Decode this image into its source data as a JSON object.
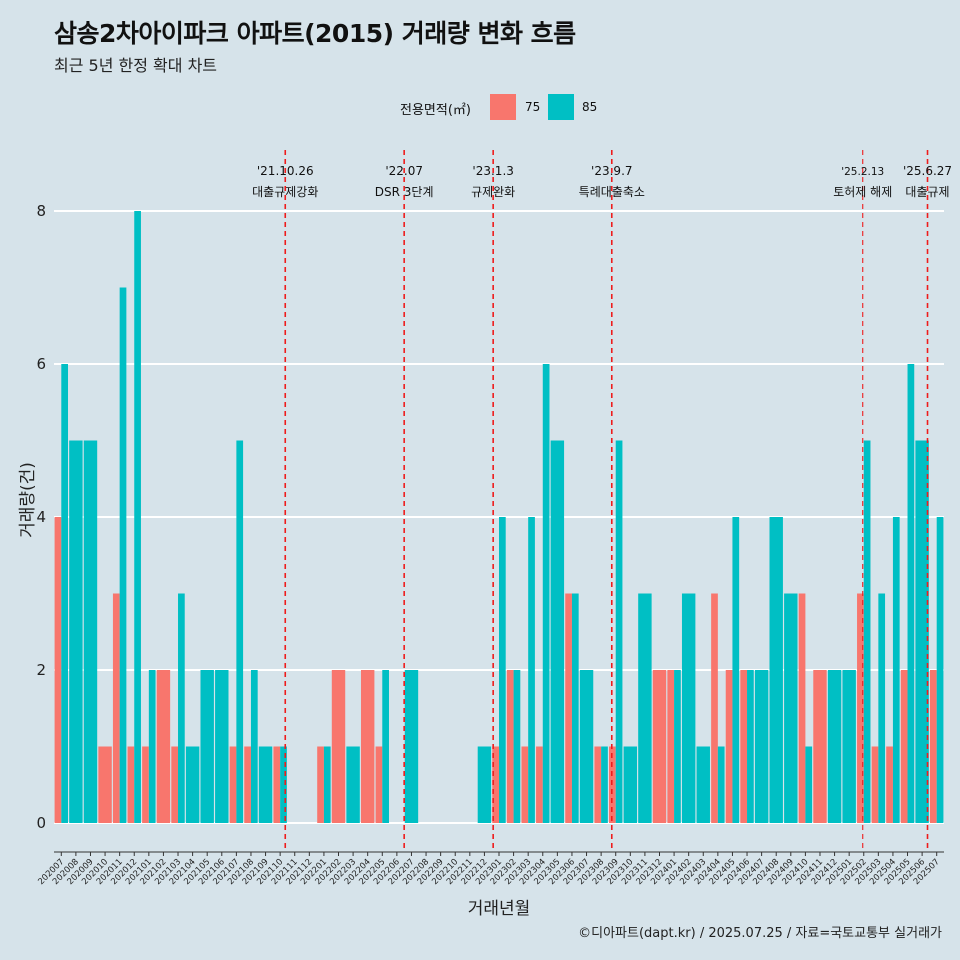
{
  "title": "삼송2차아이파크 아파트(2015) 거래량 변화 흐름",
  "subtitle": "최근 5년 한정 확대 차트",
  "legend": {
    "title": "전용면적(㎡)",
    "items": [
      {
        "label": "75",
        "color": "#f8766d"
      },
      {
        "label": "85",
        "color": "#00bfc4"
      }
    ]
  },
  "caption": "©디아파트(dapt.kr) / 2025.07.25 / 자료=국토교통부 실거래가",
  "chart_data": {
    "type": "bar",
    "xlabel": "거래년월",
    "ylabel": "거래량(건)",
    "ylim": [
      0,
      8
    ],
    "yticks": [
      "0",
      "2",
      "4",
      "6",
      "8"
    ],
    "categories": [
      "202007",
      "202008",
      "202009",
      "202010",
      "202011",
      "202012",
      "202101",
      "202102",
      "202103",
      "202104",
      "202105",
      "202106",
      "202107",
      "202108",
      "202109",
      "202110",
      "202111",
      "202112",
      "202201",
      "202202",
      "202203",
      "202204",
      "202205",
      "202206",
      "202207",
      "202208",
      "202209",
      "202210",
      "202211",
      "202212",
      "202301",
      "202302",
      "202303",
      "202304",
      "202305",
      "202306",
      "202307",
      "202308",
      "202309",
      "202310",
      "202311",
      "202312",
      "202401",
      "202402",
      "202403",
      "202404",
      "202405",
      "202406",
      "202407",
      "202408",
      "202409",
      "202410",
      "202411",
      "202412",
      "202501",
      "202502",
      "202503",
      "202504",
      "202505",
      "202506",
      "202507"
    ],
    "series": [
      {
        "name": "75",
        "color": "#f8766d",
        "values": [
          4,
          0,
          0,
          1,
          3,
          1,
          1,
          2,
          1,
          0,
          0,
          0,
          1,
          1,
          0,
          1,
          0,
          0,
          1,
          2,
          0,
          2,
          1,
          0,
          0,
          0,
          0,
          0,
          0,
          0,
          1,
          2,
          1,
          1,
          0,
          3,
          0,
          1,
          1,
          0,
          0,
          2,
          2,
          0,
          0,
          3,
          2,
          2,
          0,
          0,
          0,
          3,
          2,
          0,
          0,
          3,
          1,
          1,
          2,
          0,
          2
        ]
      },
      {
        "name": "85",
        "color": "#00bfc4",
        "values": [
          6,
          5,
          5,
          0,
          7,
          8,
          2,
          0,
          3,
          1,
          2,
          2,
          5,
          2,
          1,
          1,
          0,
          0,
          1,
          0,
          1,
          0,
          2,
          0,
          2,
          0,
          0,
          0,
          0,
          1,
          4,
          2,
          4,
          6,
          5,
          3,
          2,
          1,
          5,
          1,
          3,
          0,
          2,
          3,
          1,
          1,
          4,
          2,
          2,
          4,
          3,
          1,
          0,
          2,
          2,
          5,
          3,
          4,
          6,
          5,
          4
        ]
      }
    ],
    "annotations": [
      {
        "date": "'21.10.26",
        "label": "대출규제강화",
        "at": "202110",
        "offset": 0.85
      },
      {
        "date": "'22.07",
        "label": "DSR 3단계",
        "at": "202207",
        "offset": 0.0
      },
      {
        "date": "'23.1.3",
        "label": "규제완화",
        "at": "202301",
        "offset": 0.1
      },
      {
        "date": "'23.9.7",
        "label": "특례대출축소",
        "at": "202309",
        "offset": 0.23
      },
      {
        "date": "'25.2.13",
        "label": "토허제 해제",
        "at": "202502",
        "offset": 0.43
      },
      {
        "date": "'25.6.27",
        "label": "대출규제",
        "at": "202506",
        "offset": 0.87
      }
    ]
  }
}
